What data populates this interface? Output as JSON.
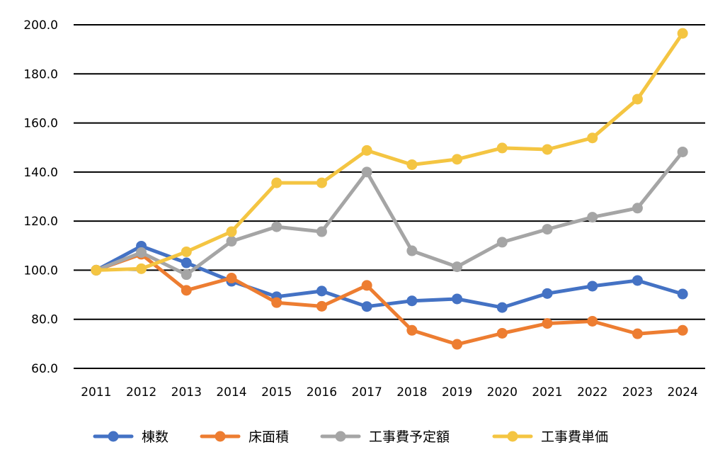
{
  "chart_data": {
    "type": "line",
    "title": "",
    "xlabel": "",
    "ylabel": "",
    "categories": [
      "2011",
      "2012",
      "2013",
      "2014",
      "2015",
      "2016",
      "2017",
      "2018",
      "2019",
      "2020",
      "2021",
      "2022",
      "2023",
      "2024"
    ],
    "ylim": [
      60,
      200
    ],
    "yticks": [
      60,
      80,
      100,
      120,
      140,
      160,
      180,
      200
    ],
    "ytick_labels": [
      "60.0",
      "80.0",
      "100.0",
      "120.0",
      "140.0",
      "160.0",
      "180.0",
      "200.0"
    ],
    "grid": "horizontal",
    "legend_position": "bottom",
    "series": [
      {
        "name": "棟数",
        "color": "#4472C4",
        "values": [
          100.0,
          109.8,
          103.0,
          95.5,
          89.2,
          91.5,
          85.2,
          87.5,
          88.3,
          84.8,
          90.5,
          93.5,
          95.8,
          90.3
        ]
      },
      {
        "name": "床面積",
        "color": "#ED7D31",
        "values": [
          100.0,
          106.5,
          91.8,
          96.8,
          86.8,
          85.3,
          93.8,
          75.5,
          69.8,
          74.3,
          78.3,
          79.2,
          74.1,
          75.5
        ]
      },
      {
        "name": "工事費予定額",
        "color": "#A5A5A5",
        "values": [
          100.0,
          107.2,
          98.2,
          111.8,
          117.7,
          115.7,
          140.0,
          107.9,
          101.4,
          111.4,
          116.7,
          121.6,
          125.3,
          148.2
        ]
      },
      {
        "name": "工事費単価",
        "color": "#F4C542",
        "values": [
          100.0,
          100.6,
          107.5,
          115.7,
          135.6,
          135.6,
          148.8,
          143.0,
          145.2,
          149.8,
          149.2,
          153.9,
          169.7,
          196.5
        ]
      }
    ]
  }
}
